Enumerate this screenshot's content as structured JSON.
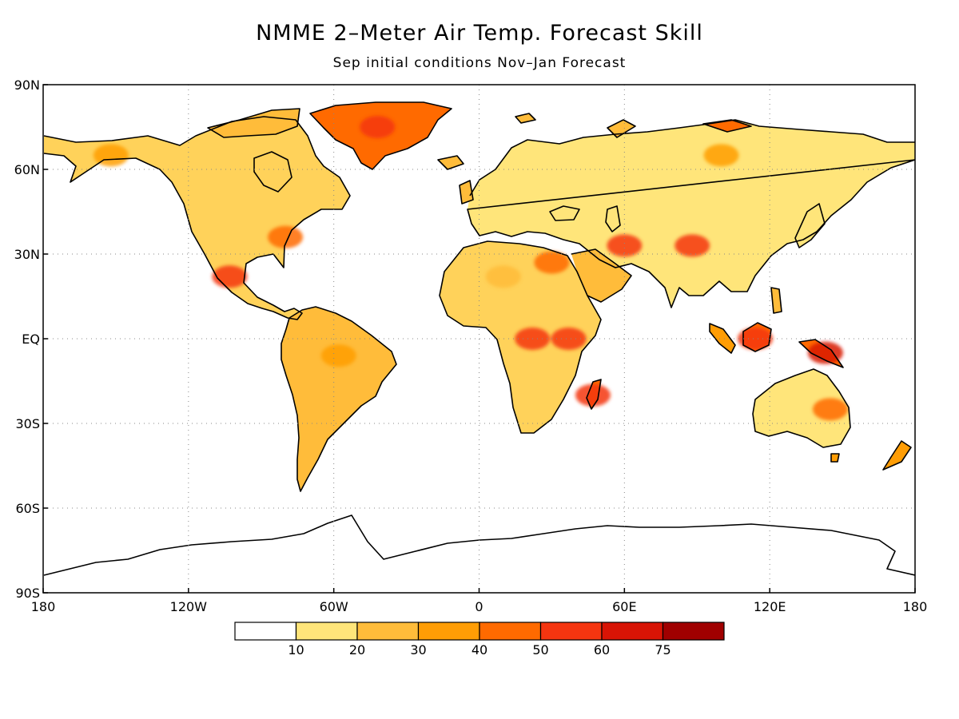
{
  "title": "NMME 2–Meter Air Temp. Forecast Skill",
  "subtitle": "Sep initial conditions   Nov–Jan Forecast",
  "map": {
    "lon_range": [
      -180,
      180
    ],
    "lat_range": [
      -90,
      90
    ],
    "grid": true,
    "lon_ticks": [
      {
        "value": -180,
        "label": "180"
      },
      {
        "value": -120,
        "label": "120W"
      },
      {
        "value": -60,
        "label": "60W"
      },
      {
        "value": 0,
        "label": "0"
      },
      {
        "value": 60,
        "label": "60E"
      },
      {
        "value": 120,
        "label": "120E"
      },
      {
        "value": 180,
        "label": "180"
      }
    ],
    "lat_ticks": [
      {
        "value": 90,
        "label": "90N"
      },
      {
        "value": 60,
        "label": "60N"
      },
      {
        "value": 30,
        "label": "30N"
      },
      {
        "value": 0,
        "label": "EQ"
      },
      {
        "value": -30,
        "label": "30S"
      },
      {
        "value": -60,
        "label": "60S"
      },
      {
        "value": -90,
        "label": "90S"
      }
    ]
  },
  "colorbar": {
    "labels": [
      "10",
      "20",
      "30",
      "40",
      "50",
      "60",
      "75"
    ],
    "colors": [
      "#ffffff",
      "#ffe57a",
      "#ffbc3a",
      "#ff9d05",
      "#ff6a00",
      "#f53510",
      "#d81405",
      "#a00000"
    ]
  },
  "skill_regions": [
    {
      "name": "Greenland",
      "lon": -42,
      "lat": 75,
      "level": 5
    },
    {
      "name": "Alaska",
      "lon": -152,
      "lat": 65,
      "level": 3
    },
    {
      "name": "Eastern US",
      "lon": -80,
      "lat": 36,
      "level": 4
    },
    {
      "name": "Mexico",
      "lon": -103,
      "lat": 22,
      "level": 5
    },
    {
      "name": "Amazon",
      "lon": -58,
      "lat": -6,
      "level": 3
    },
    {
      "name": "Sahara",
      "lon": 10,
      "lat": 22,
      "level": 2
    },
    {
      "name": "Egypt",
      "lon": 30,
      "lat": 27,
      "level": 4
    },
    {
      "name": "Congo",
      "lon": 22,
      "lat": 0,
      "level": 5
    },
    {
      "name": "East Africa",
      "lon": 37,
      "lat": 0,
      "level": 5
    },
    {
      "name": "Madagascar",
      "lon": 47,
      "lat": -20,
      "level": 5
    },
    {
      "name": "Iran",
      "lon": 60,
      "lat": 33,
      "level": 5
    },
    {
      "name": "Tibet",
      "lon": 88,
      "lat": 33,
      "level": 5
    },
    {
      "name": "Borneo",
      "lon": 114,
      "lat": 0,
      "level": 5
    },
    {
      "name": "New Guinea",
      "lon": 143,
      "lat": -5,
      "level": 6
    },
    {
      "name": "Siberia",
      "lon": 100,
      "lat": 65,
      "level": 3
    },
    {
      "name": "Australia",
      "lon": 145,
      "lat": -25,
      "level": 4
    }
  ]
}
